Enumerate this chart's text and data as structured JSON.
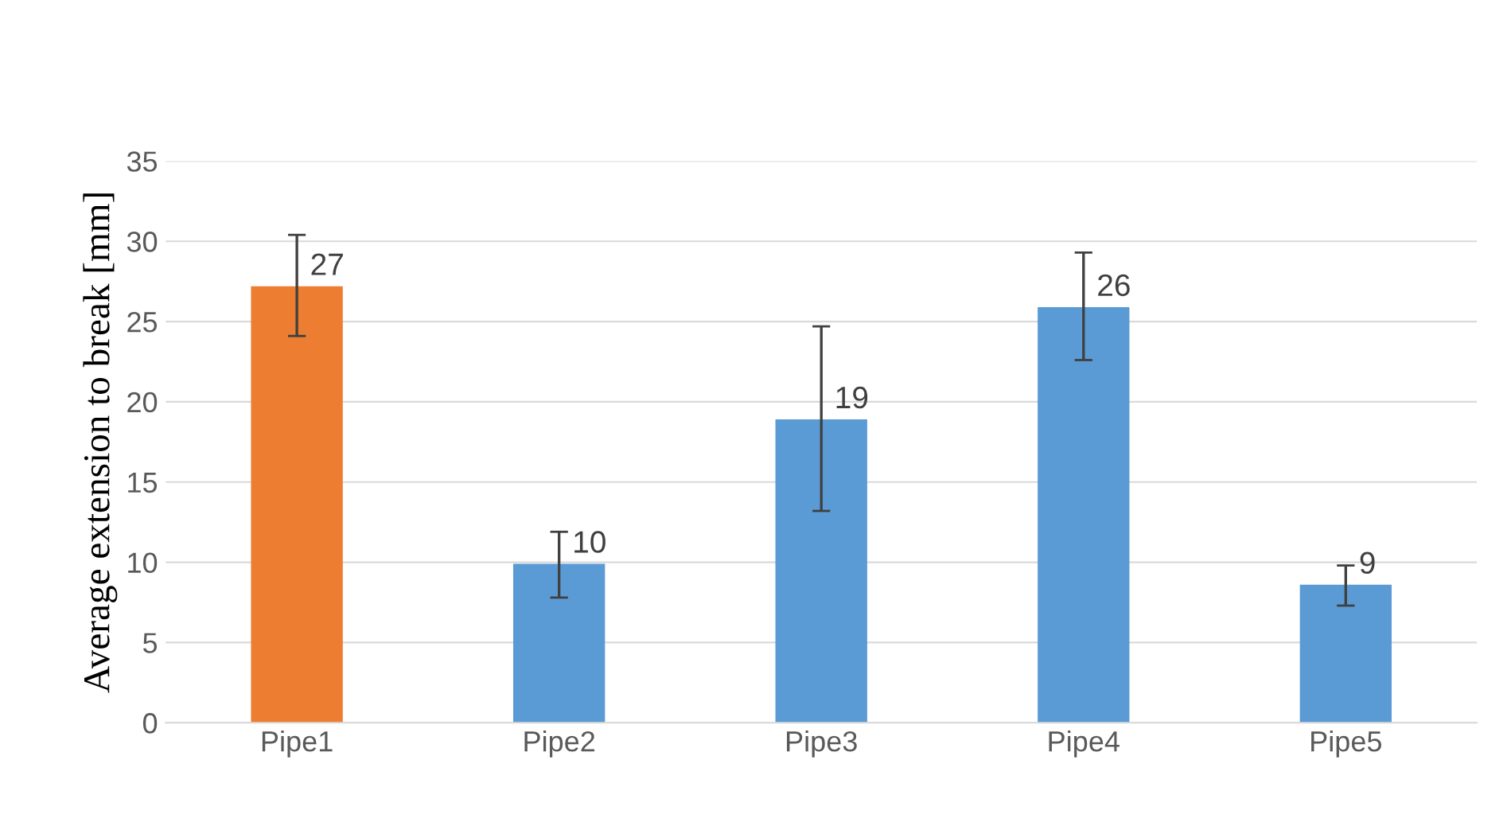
{
  "chart_data": {
    "type": "bar",
    "ylabel": "Average extension to break [mm]",
    "categories": [
      "Pipe1",
      "Pipe2",
      "Pipe3",
      "Pipe4",
      "Pipe5"
    ],
    "values": [
      27.2,
      9.9,
      18.9,
      25.9,
      8.6
    ],
    "colors": [
      "#ed7d31",
      "#5b9bd5",
      "#5b9bd5",
      "#5b9bd5",
      "#5b9bd5"
    ],
    "errors": [
      [
        24.1,
        30.4
      ],
      [
        7.8,
        11.9
      ],
      [
        13.2,
        24.7
      ],
      [
        22.6,
        29.3
      ],
      [
        7.3,
        9.8
      ]
    ],
    "value_labels": [
      "27",
      "10",
      "19",
      "26",
      "9"
    ],
    "ylim": [
      0,
      35
    ],
    "yticks": [
      0,
      5,
      10,
      15,
      20,
      25,
      30,
      35
    ],
    "grid": "y",
    "legend": false
  }
}
